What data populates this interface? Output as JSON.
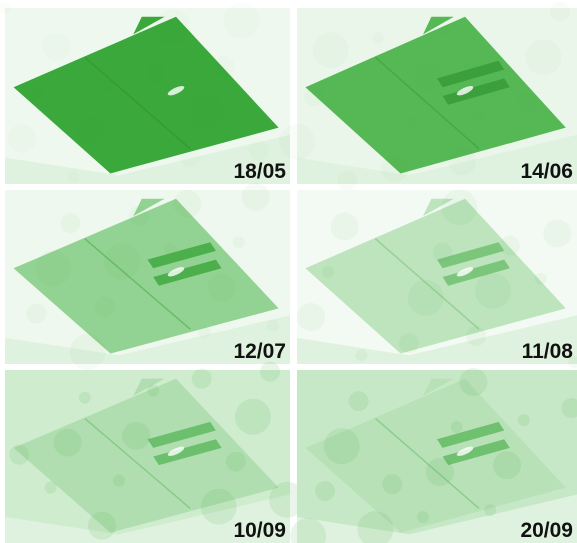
{
  "panels": [
    {
      "label": "18/05"
    },
    {
      "label": "14/06"
    },
    {
      "label": "12/07"
    },
    {
      "label": "11/08"
    },
    {
      "label": "10/09"
    },
    {
      "label": "20/09"
    }
  ]
}
